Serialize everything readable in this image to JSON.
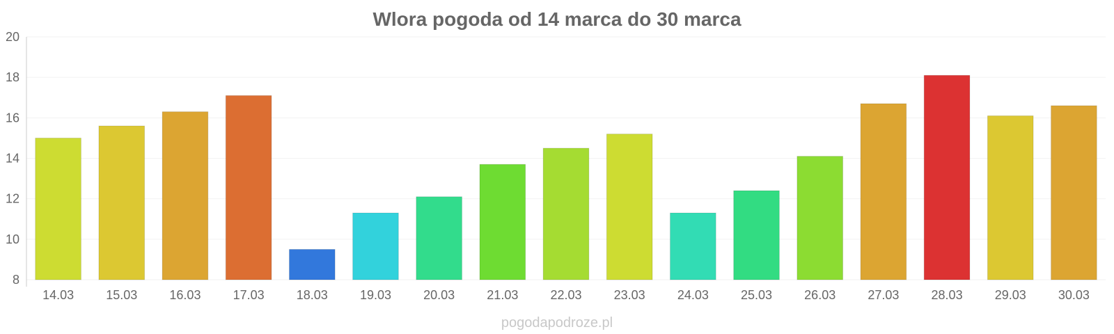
{
  "chart_data": {
    "type": "bar",
    "title": "Wlora pogoda od 14 marca do 30 marca",
    "xlabel": "",
    "ylabel": "",
    "ylim": [
      8,
      20
    ],
    "yticks": [
      8,
      10,
      12,
      14,
      16,
      18,
      20
    ],
    "categories": [
      "14.03",
      "15.03",
      "16.03",
      "17.03",
      "18.03",
      "19.03",
      "20.03",
      "21.03",
      "22.03",
      "23.03",
      "24.03",
      "25.03",
      "26.03",
      "27.03",
      "28.03",
      "29.03",
      "30.03"
    ],
    "values": [
      15.0,
      15.6,
      16.3,
      17.1,
      9.5,
      11.3,
      12.1,
      13.7,
      14.5,
      15.2,
      11.3,
      12.4,
      14.1,
      16.7,
      18.1,
      16.1,
      16.6
    ],
    "colors": [
      "#cddc32",
      "#dcc832",
      "#dca532",
      "#dc6e32",
      "#3278dc",
      "#32d2dc",
      "#32dc8c",
      "#6edc32",
      "#a5dc32",
      "#cddc32",
      "#32dcb4",
      "#32dc82",
      "#8cdc32",
      "#dca532",
      "#dc3232",
      "#dcc832",
      "#dca532"
    ],
    "grid": true,
    "legend": "none"
  },
  "footer": {
    "watermark": "pogodapodroze.pl"
  }
}
